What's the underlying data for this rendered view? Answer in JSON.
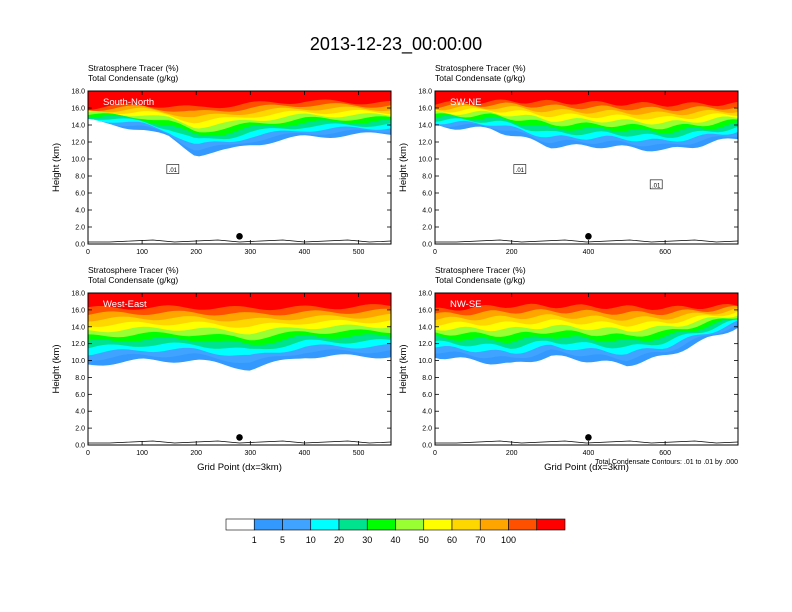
{
  "figure": {
    "title": "2013-12-23_00:00:00",
    "footnote": "Total Condensate Contours: .01 to .01 by .000"
  },
  "colors": {
    "levels": [
      "#ffffff",
      "#3399ff",
      "#3fa3ff",
      "#00ffff",
      "#00e38e",
      "#00ff00",
      "#99ff33",
      "#ffff00",
      "#ffd700",
      "#ffa500",
      "#ff5000",
      "#ff0000"
    ]
  },
  "chart_data": [
    {
      "type": "heatmap",
      "title": "Stratosphere Tracer   (%)",
      "subtitle": "Total Condensate   (g/kg)",
      "cross_section_label": "South-North",
      "xlabel": "",
      "ylabel": "Height (km)",
      "xlim": [
        0,
        560
      ],
      "xticks": [
        "0",
        "100",
        "200",
        "300",
        "400",
        "500"
      ],
      "ylim": [
        0,
        18
      ],
      "yticks": [
        "0.0",
        "2.0",
        "4.0",
        "6.0",
        "8.0",
        "10.0",
        "12.0",
        "14.0",
        "16.0",
        "18.0"
      ],
      "marker_x": 280,
      "tracer_100pct_base_km": [
        [
          0,
          16.0
        ],
        [
          100,
          16.4
        ],
        [
          200,
          16.0
        ],
        [
          300,
          16.5
        ],
        [
          400,
          16.8
        ],
        [
          560,
          16.6
        ]
      ],
      "tracer_1pct_base_km": [
        [
          0,
          14.5
        ],
        [
          100,
          13.5
        ],
        [
          150,
          12.5
        ],
        [
          200,
          10.5
        ],
        [
          260,
          11.0
        ],
        [
          300,
          11.7
        ],
        [
          400,
          12.6
        ],
        [
          560,
          13.0
        ]
      ],
      "contour_labels": [
        ".01"
      ]
    },
    {
      "type": "heatmap",
      "title": "Stratosphere Tracer   (%)",
      "subtitle": "Total Condensate   (g/kg)",
      "cross_section_label": "SW-NE",
      "xlabel": "",
      "ylabel": "Height (km)",
      "xlim": [
        0,
        790
      ],
      "xticks": [
        "0",
        "200",
        "400",
        "600"
      ],
      "ylim": [
        0,
        18
      ],
      "yticks": [
        "0.0",
        "2.0",
        "4.0",
        "6.0",
        "8.0",
        "10.0",
        "12.0",
        "14.0",
        "16.0",
        "18.0"
      ],
      "marker_x": 400,
      "tracer_100pct_base_km": [
        [
          0,
          16.5
        ],
        [
          200,
          16.8
        ],
        [
          400,
          16.6
        ],
        [
          600,
          16.4
        ],
        [
          790,
          16.5
        ]
      ],
      "tracer_1pct_base_km": [
        [
          0,
          13.8
        ],
        [
          150,
          13.5
        ],
        [
          300,
          11.5
        ],
        [
          450,
          11.5
        ],
        [
          600,
          11.0
        ],
        [
          700,
          11.7
        ],
        [
          790,
          12.5
        ]
      ],
      "contour_labels": [
        ".01",
        ".01"
      ]
    },
    {
      "type": "heatmap",
      "title": "Stratosphere Tracer   (%)",
      "subtitle": "Total Condensate   (g/kg)",
      "cross_section_label": "West-East",
      "xlabel": "Grid Point (dx=3km)",
      "ylabel": "Height (km)",
      "xlim": [
        0,
        560
      ],
      "xticks": [
        "0",
        "100",
        "200",
        "300",
        "400",
        "500"
      ],
      "ylim": [
        0,
        18
      ],
      "yticks": [
        "0.0",
        "2.0",
        "4.0",
        "6.0",
        "8.0",
        "10.0",
        "12.0",
        "14.0",
        "16.0",
        "18.0"
      ],
      "marker_x": 280,
      "tracer_100pct_base_km": [
        [
          0,
          16.2
        ],
        [
          150,
          16.3
        ],
        [
          300,
          16.2
        ],
        [
          450,
          16.3
        ],
        [
          560,
          16.5
        ]
      ],
      "tracer_1pct_base_km": [
        [
          0,
          9.5
        ],
        [
          100,
          10.0
        ],
        [
          200,
          10.0
        ],
        [
          300,
          9.0
        ],
        [
          400,
          10.5
        ],
        [
          560,
          10.5
        ]
      ],
      "contour_labels": []
    },
    {
      "type": "heatmap",
      "title": "Stratosphere Tracer   (%)",
      "subtitle": "Total Condensate   (g/kg)",
      "cross_section_label": "NW-SE",
      "xlabel": "Grid Point (dx=3km)",
      "ylabel": "Height (km)",
      "xlim": [
        0,
        790
      ],
      "xticks": [
        "0",
        "200",
        "400",
        "600"
      ],
      "ylim": [
        0,
        18
      ],
      "yticks": [
        "0.0",
        "2.0",
        "4.0",
        "6.0",
        "8.0",
        "10.0",
        "12.0",
        "14.0",
        "16.0",
        "18.0"
      ],
      "marker_x": 400,
      "tracer_100pct_base_km": [
        [
          0,
          16.0
        ],
        [
          200,
          16.5
        ],
        [
          400,
          16.4
        ],
        [
          600,
          16.2
        ],
        [
          790,
          16.5
        ]
      ],
      "tracer_1pct_base_km": [
        [
          0,
          10.5
        ],
        [
          200,
          9.5
        ],
        [
          300,
          10.5
        ],
        [
          500,
          9.5
        ],
        [
          600,
          10.5
        ],
        [
          790,
          14.0
        ]
      ],
      "contour_labels": []
    }
  ],
  "colorbar": {
    "labels": [
      "1",
      "5",
      "10",
      "20",
      "30",
      "40",
      "50",
      "60",
      "70",
      "100"
    ]
  }
}
